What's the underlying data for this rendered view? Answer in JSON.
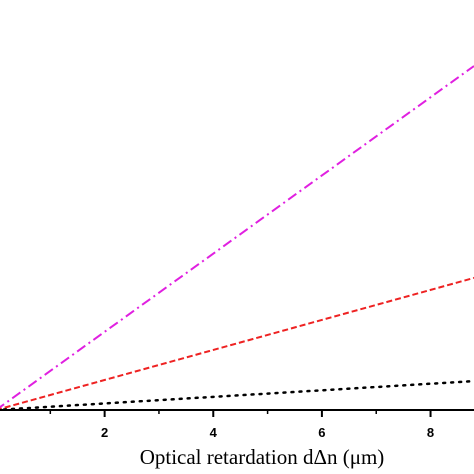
{
  "chart_data": {
    "type": "line",
    "title": "",
    "xlabel": "Optical retardation dΔn  (μm)",
    "ylabel": "",
    "xlim": [
      0,
      8.8
    ],
    "x_ticks": [
      2,
      4,
      6,
      8
    ],
    "grid": false,
    "legend": "none",
    "series": [
      {
        "color": "#e020e0",
        "dash": "dash-dot",
        "x": [
          0,
          8.8
        ],
        "y": [
          0,
          1.0
        ]
      },
      {
        "color": "#ee2222",
        "dash": "dashed",
        "x": [
          0,
          8.8
        ],
        "y": [
          0,
          0.384
        ]
      },
      {
        "color": "#000000",
        "dash": "dotted",
        "x": [
          0,
          8.8
        ],
        "y": [
          0,
          0.084
        ]
      }
    ]
  }
}
